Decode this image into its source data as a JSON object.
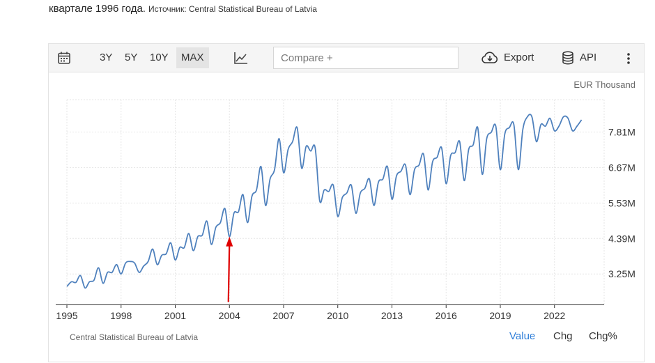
{
  "intro": {
    "text": "квартале 1996 года.",
    "source_label": "Источник: Central Statistical Bureau of Latvia"
  },
  "toolbar": {
    "calendar_icon": "calendar-icon",
    "ranges": [
      {
        "label": "3Y",
        "active": false
      },
      {
        "label": "5Y",
        "active": false
      },
      {
        "label": "10Y",
        "active": false
      },
      {
        "label": "MAX",
        "active": true
      }
    ],
    "chart_type_icon": "line-chart-icon",
    "compare_placeholder": "Compare +",
    "export_label": "Export",
    "api_label": "API",
    "more_icon": "vertical-dots-icon"
  },
  "unit_label": "EUR Thousand",
  "footer": {
    "source": "Central Statistical Bureau of Latvia",
    "tabs": [
      {
        "label": "Value",
        "active": true
      },
      {
        "label": "Chg",
        "active": false
      },
      {
        "label": "Chg%",
        "active": false
      }
    ]
  },
  "colors": {
    "line": "#4f81bd",
    "arrow": "#e00000",
    "active_tab": "#2f7ed8"
  },
  "chart_data": {
    "type": "line",
    "title": "",
    "xlabel": "",
    "ylabel": "EUR Thousand",
    "xlim": [
      1995.0,
      2024.75
    ],
    "ylim": [
      2.27,
      8.85
    ],
    "x_ticks": [
      1995,
      1998,
      2001,
      2004,
      2007,
      2010,
      2013,
      2016,
      2019,
      2022
    ],
    "x_tick_labels": [
      "1995",
      "1998",
      "2001",
      "2004",
      "2007",
      "2010",
      "2013",
      "2016",
      "2019",
      "2022"
    ],
    "y_ticks": [
      3.25,
      4.39,
      5.53,
      6.67,
      7.81
    ],
    "y_tick_labels": [
      "3.25M",
      "4.39M",
      "5.53M",
      "6.67M",
      "7.81M"
    ],
    "annotation": {
      "type": "arrow",
      "x": 2004.0,
      "y": 4.45,
      "from_y": 2.35,
      "color": "#e00000"
    },
    "series": [
      {
        "name": "Value",
        "start_year": 1995.0,
        "step": 0.25,
        "values": [
          2.85,
          3.0,
          2.98,
          3.2,
          2.8,
          3.0,
          3.05,
          3.45,
          2.95,
          3.3,
          3.3,
          3.55,
          3.25,
          3.6,
          3.65,
          3.6,
          3.3,
          3.5,
          3.65,
          4.05,
          3.55,
          3.85,
          3.9,
          4.25,
          3.7,
          4.1,
          4.1,
          4.55,
          4.0,
          4.45,
          4.5,
          4.95,
          4.2,
          4.75,
          4.9,
          5.35,
          4.45,
          5.2,
          5.25,
          5.8,
          4.9,
          5.75,
          5.95,
          6.7,
          5.45,
          6.3,
          6.6,
          7.6,
          6.5,
          7.25,
          7.5,
          7.95,
          6.65,
          7.35,
          7.2,
          7.3,
          5.6,
          5.95,
          5.9,
          6.1,
          5.1,
          5.7,
          5.85,
          6.1,
          5.2,
          5.85,
          6.0,
          6.3,
          5.45,
          6.2,
          6.3,
          6.7,
          5.65,
          6.4,
          6.55,
          6.75,
          5.8,
          6.6,
          6.75,
          7.1,
          5.95,
          6.85,
          7.0,
          7.3,
          6.15,
          7.05,
          7.15,
          7.5,
          6.25,
          7.25,
          7.4,
          7.95,
          6.45,
          7.6,
          7.8,
          8.0,
          6.6,
          7.75,
          7.95,
          8.05,
          6.6,
          7.9,
          8.3,
          8.3,
          7.5,
          8.05,
          8.0,
          8.25,
          7.85,
          8.0,
          8.3,
          8.25,
          7.85,
          8.0,
          8.2
        ]
      }
    ]
  }
}
